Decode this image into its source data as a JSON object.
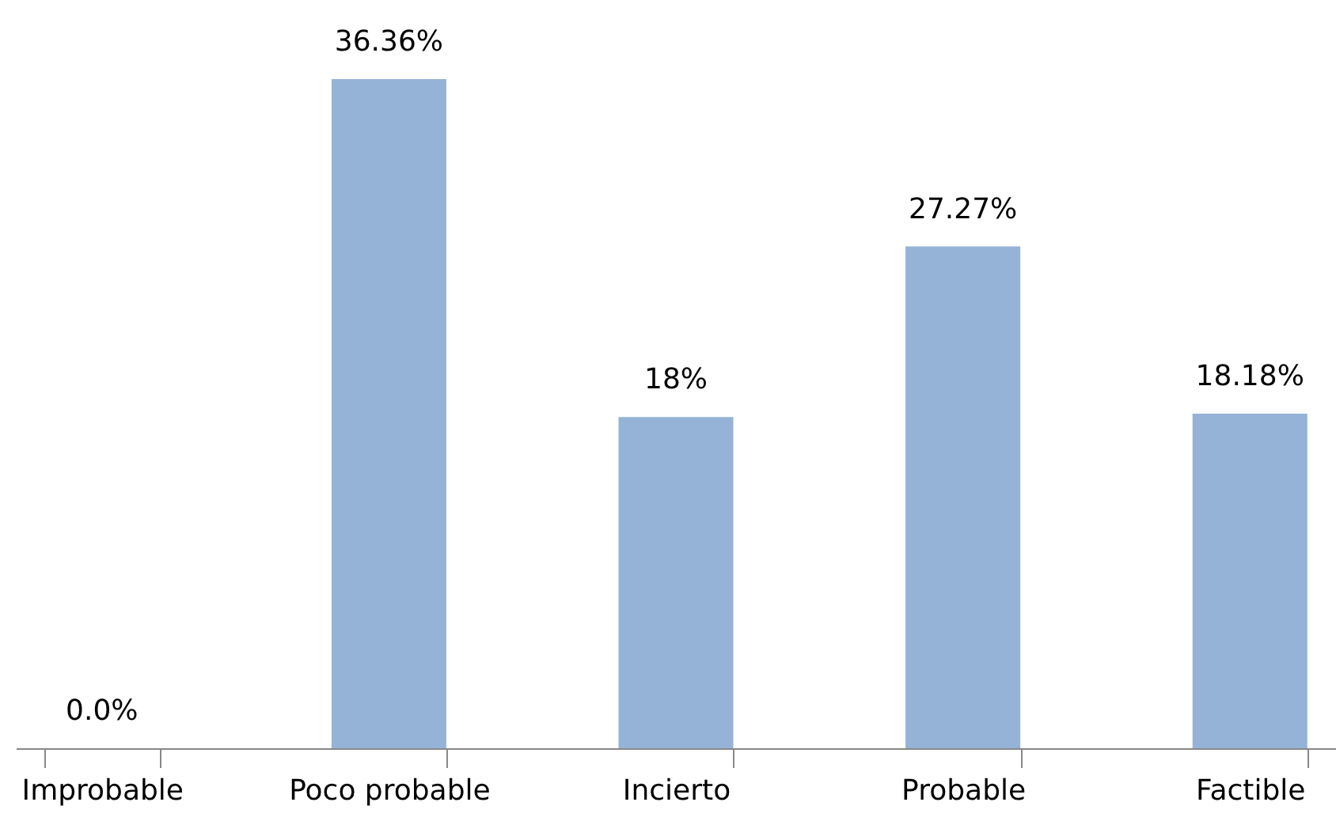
{
  "chart_data": {
    "type": "bar",
    "categories": [
      "Improbable",
      "Poco probable",
      "Incierto",
      "Probable",
      "Factible"
    ],
    "values": [
      0,
      36.36,
      18,
      27.27,
      18.18
    ],
    "color": "#95b3d7",
    "value_labels": [
      "0.0%",
      "36.36%",
      "18%",
      "27.27%",
      "18.18%"
    ],
    "grid": false
  }
}
